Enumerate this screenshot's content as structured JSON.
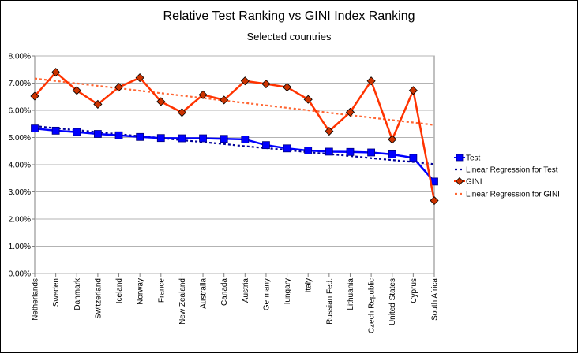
{
  "chart_data": {
    "type": "line",
    "title": "Relative Test Ranking vs GINI Index Ranking",
    "subtitle": "Selected countries",
    "xlabel": "",
    "ylabel": "",
    "ylim": [
      0,
      8
    ],
    "yticks": [
      "0.00%",
      "1.00%",
      "2.00%",
      "3.00%",
      "4.00%",
      "5.00%",
      "6.00%",
      "7.00%",
      "8.00%"
    ],
    "grid": true,
    "legend_position": "right",
    "categories": [
      "Netherlands",
      "Sweden",
      "Danmark",
      "Switzerland",
      "Iceland",
      "Norway",
      "France",
      "New Zealand",
      "Australia",
      "Canada",
      "Austria",
      "Germany",
      "Hungary",
      "Italy",
      "Russian Fed.",
      "Lithuania",
      "Czech Republic",
      "United States",
      "Cyprus",
      "South Africa"
    ],
    "series": [
      {
        "name": "Test",
        "color": "#0000ff",
        "marker": "square",
        "values": [
          5.33,
          5.25,
          5.2,
          5.13,
          5.08,
          5.02,
          4.98,
          4.97,
          4.97,
          4.95,
          4.93,
          4.72,
          4.6,
          4.52,
          4.48,
          4.47,
          4.45,
          4.38,
          4.25,
          3.38
        ]
      },
      {
        "name": "Linear Regression for Test",
        "color": "#000099",
        "style": "dotted",
        "values": [
          5.42,
          5.34,
          5.27,
          5.2,
          5.12,
          5.05,
          4.98,
          4.9,
          4.83,
          4.76,
          4.68,
          4.61,
          4.54,
          4.46,
          4.39,
          4.32,
          4.24,
          4.17,
          4.1,
          4.02
        ]
      },
      {
        "name": "GINI",
        "color": "#ff3300",
        "marker": "diamond",
        "marker_fill": "#cc3300",
        "values": [
          6.52,
          7.4,
          6.73,
          6.22,
          6.85,
          7.2,
          6.32,
          5.92,
          6.57,
          6.38,
          7.08,
          6.97,
          6.85,
          6.4,
          5.23,
          5.93,
          7.08,
          4.93,
          6.73,
          2.68
        ]
      },
      {
        "name": "Linear Regression for GINI",
        "color": "#ff6633",
        "style": "dotted",
        "values": [
          7.17,
          7.08,
          6.99,
          6.9,
          6.81,
          6.72,
          6.63,
          6.54,
          6.45,
          6.36,
          6.27,
          6.18,
          6.09,
          6.0,
          5.91,
          5.82,
          5.73,
          5.64,
          5.55,
          5.46
        ]
      }
    ]
  }
}
